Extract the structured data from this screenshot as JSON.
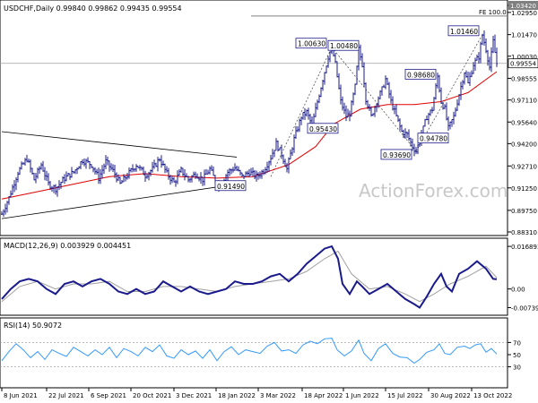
{
  "chart_data": [
    {
      "type": "ohlc",
      "header": "USDCHF,Daily  0.99840 0.99862 0.99435 0.99554",
      "watermark": "ActionForex.com",
      "ylim": [
        0.8831,
        1.0342
      ],
      "yticks": [
        "1.03420",
        "1.02950",
        "1.01470",
        "1.00030",
        "0.98555",
        "0.97110",
        "0.95640",
        "0.94200",
        "0.92710",
        "0.91250",
        "0.89750",
        "0.88310"
      ],
      "last_price_label": "0.99554",
      "fe_label": "FE 100.0",
      "fe_level": 1.0271,
      "annotations": [
        {
          "text": "1.00630",
          "value": 1.0063
        },
        {
          "text": "1.00480",
          "value": 1.0048
        },
        {
          "text": "1.01460",
          "value": 1.0146
        },
        {
          "text": "0.98680",
          "value": 0.9868
        },
        {
          "text": "0.95430",
          "value": 0.9543
        },
        {
          "text": "0.94780",
          "value": 0.9478
        },
        {
          "text": "0.93690",
          "value": 0.9369
        },
        {
          "text": "0.91490",
          "value": 0.9149
        }
      ],
      "xticks": [
        "8 Jun 2021",
        "22 Jul 2021",
        "6 Sep 2021",
        "20 Oct 2021",
        "3 Dec 2021",
        "18 Jan 2022",
        "3 Mar 2022",
        "18 Apr 2022",
        "1 Jun 2022",
        "15 Jul 2022",
        "30 Aug 2022",
        "13 Oct 2022"
      ],
      "close_path": [
        [
          0,
          0.895
        ],
        [
          8,
          0.906
        ],
        [
          18,
          0.923
        ],
        [
          28,
          0.932
        ],
        [
          36,
          0.918
        ],
        [
          44,
          0.928
        ],
        [
          52,
          0.915
        ],
        [
          60,
          0.912
        ],
        [
          70,
          0.919
        ],
        [
          80,
          0.923
        ],
        [
          90,
          0.931
        ],
        [
          100,
          0.928
        ],
        [
          108,
          0.919
        ],
        [
          116,
          0.93
        ],
        [
          125,
          0.923
        ],
        [
          132,
          0.915
        ],
        [
          140,
          0.921
        ],
        [
          150,
          0.928
        ],
        [
          160,
          0.921
        ],
        [
          168,
          0.925
        ],
        [
          176,
          0.932
        ],
        [
          184,
          0.922
        ],
        [
          192,
          0.916
        ],
        [
          200,
          0.924
        ],
        [
          208,
          0.918
        ],
        [
          216,
          0.922
        ],
        [
          224,
          0.918
        ],
        [
          232,
          0.925
        ],
        [
          240,
          0.915
        ],
        [
          246,
          0.917
        ],
        [
          252,
          0.923
        ],
        [
          260,
          0.926
        ],
        [
          268,
          0.92
        ],
        [
          276,
          0.923
        ],
        [
          284,
          0.92
        ],
        [
          292,
          0.924
        ],
        [
          300,
          0.933
        ],
        [
          306,
          0.942
        ],
        [
          312,
          0.935
        ],
        [
          318,
          0.925
        ],
        [
          326,
          0.945
        ],
        [
          334,
          0.96
        ],
        [
          340,
          0.963
        ],
        [
          346,
          0.954
        ],
        [
          352,
          0.97
        ],
        [
          358,
          0.985
        ],
        [
          364,
          1.0
        ],
        [
          368,
          1.0063
        ],
        [
          372,
          0.995
        ],
        [
          378,
          0.97
        ],
        [
          384,
          0.96
        ],
        [
          388,
          0.962
        ],
        [
          394,
          0.98
        ],
        [
          398,
          1.0048
        ],
        [
          402,
          0.995
        ],
        [
          406,
          0.972
        ],
        [
          412,
          0.96
        ],
        [
          418,
          0.97
        ],
        [
          424,
          0.978
        ],
        [
          428,
          0.985
        ],
        [
          434,
          0.97
        ],
        [
          440,
          0.96
        ],
        [
          446,
          0.95
        ],
        [
          452,
          0.948
        ],
        [
          458,
          0.94
        ],
        [
          462,
          0.9369
        ],
        [
          468,
          0.948
        ],
        [
          474,
          0.96
        ],
        [
          480,
          0.965
        ],
        [
          486,
          0.9868
        ],
        [
          490,
          0.97
        ],
        [
          494,
          0.965
        ],
        [
          498,
          0.952
        ],
        [
          504,
          0.96
        ],
        [
          510,
          0.975
        ],
        [
          516,
          0.99
        ],
        [
          520,
          0.982
        ],
        [
          526,
          0.995
        ],
        [
          532,
          1.0
        ],
        [
          536,
          1.0146
        ],
        [
          540,
          1.005
        ],
        [
          544,
          0.993
        ],
        [
          548,
          1.01
        ],
        [
          552,
          0.9955
        ]
      ],
      "ma_path": [
        [
          0,
          0.905
        ],
        [
          40,
          0.91
        ],
        [
          80,
          0.915
        ],
        [
          120,
          0.92
        ],
        [
          160,
          0.922
        ],
        [
          200,
          0.92
        ],
        [
          240,
          0.919
        ],
        [
          280,
          0.92
        ],
        [
          320,
          0.928
        ],
        [
          350,
          0.94
        ],
        [
          370,
          0.955
        ],
        [
          400,
          0.965
        ],
        [
          430,
          0.968
        ],
        [
          460,
          0.968
        ],
        [
          490,
          0.97
        ],
        [
          520,
          0.976
        ],
        [
          552,
          0.99
        ]
      ],
      "channel_lines": [
        {
          "from": [
            0,
            0.95
          ],
          "to": [
            262,
            0.933
          ]
        },
        {
          "from": [
            0,
            0.892
          ],
          "to": [
            262,
            0.915
          ]
        },
        {
          "from": [
            300,
            0.92
          ],
          "to": [
            368,
            1.0063
          ],
          "dash": true
        },
        {
          "from": [
            368,
            1.0063
          ],
          "to": [
            462,
            0.9369
          ],
          "dash": true
        },
        {
          "from": [
            462,
            0.9369
          ],
          "to": [
            536,
            1.0146
          ],
          "dash": true
        }
      ]
    },
    {
      "type": "line",
      "header": "MACD(12,26,9) 0.003929 0.004451",
      "ylim": [
        -0.009,
        0.018
      ],
      "yticks": [
        {
          "label": "0.016893",
          "value": 0.016893
        },
        {
          "label": "0.00",
          "value": 0.0
        },
        {
          "label": "-0.007393",
          "value": -0.007393
        }
      ],
      "zero_marker": "0.00",
      "series": [
        {
          "values": [
            [
              0,
              -0.004
            ],
            [
              10,
              0.0
            ],
            [
              20,
              0.003
            ],
            [
              30,
              0.004
            ],
            [
              40,
              0.003
            ],
            [
              50,
              0.0
            ],
            [
              60,
              -0.002
            ],
            [
              70,
              0.002
            ],
            [
              80,
              0.003
            ],
            [
              90,
              0.001
            ],
            [
              100,
              0.003
            ],
            [
              110,
              0.004
            ],
            [
              120,
              0.002
            ],
            [
              130,
              -0.001
            ],
            [
              140,
              -0.002
            ],
            [
              150,
              0.0
            ],
            [
              160,
              -0.002
            ],
            [
              170,
              -0.001
            ],
            [
              180,
              0.003
            ],
            [
              190,
              0.001
            ],
            [
              200,
              -0.001
            ],
            [
              210,
              0.001
            ],
            [
              220,
              -0.001
            ],
            [
              230,
              -0.002
            ],
            [
              240,
              -0.001
            ],
            [
              250,
              0.0
            ],
            [
              260,
              0.003
            ],
            [
              270,
              0.002
            ],
            [
              280,
              0.002
            ],
            [
              290,
              0.003
            ],
            [
              300,
              0.005
            ],
            [
              310,
              0.006
            ],
            [
              320,
              0.003
            ],
            [
              330,
              0.006
            ],
            [
              340,
              0.01
            ],
            [
              350,
              0.013
            ],
            [
              360,
              0.016
            ],
            [
              368,
              0.0169
            ],
            [
              375,
              0.012
            ],
            [
              380,
              0.002
            ],
            [
              388,
              -0.002
            ],
            [
              396,
              0.003
            ],
            [
              402,
              0.001
            ],
            [
              410,
              -0.002
            ],
            [
              420,
              0.0
            ],
            [
              430,
              0.002
            ],
            [
              440,
              -0.001
            ],
            [
              450,
              -0.004
            ],
            [
              460,
              -0.006
            ],
            [
              466,
              -0.0074
            ],
            [
              474,
              -0.003
            ],
            [
              482,
              0.002
            ],
            [
              490,
              0.006
            ],
            [
              496,
              0.001
            ],
            [
              502,
              -0.001
            ],
            [
              510,
              0.006
            ],
            [
              520,
              0.008
            ],
            [
              530,
              0.011
            ],
            [
              540,
              0.008
            ],
            [
              548,
              0.004
            ],
            [
              552,
              0.0039
            ]
          ]
        },
        {
          "values": [
            [
              0,
              -0.005
            ],
            [
              20,
              0.001
            ],
            [
              40,
              0.003
            ],
            [
              60,
              0.0
            ],
            [
              80,
              0.002
            ],
            [
              100,
              0.002
            ],
            [
              120,
              0.003
            ],
            [
              140,
              -0.001
            ],
            [
              160,
              -0.001
            ],
            [
              180,
              0.001
            ],
            [
              200,
              0.001
            ],
            [
              220,
              0.0
            ],
            [
              240,
              -0.001
            ],
            [
              260,
              0.001
            ],
            [
              280,
              0.002
            ],
            [
              300,
              0.003
            ],
            [
              320,
              0.004
            ],
            [
              340,
              0.007
            ],
            [
              360,
              0.012
            ],
            [
              375,
              0.015
            ],
            [
              390,
              0.006
            ],
            [
              410,
              0.0
            ],
            [
              430,
              0.001
            ],
            [
              450,
              -0.002
            ],
            [
              466,
              -0.005
            ],
            [
              482,
              -0.002
            ],
            [
              500,
              0.002
            ],
            [
              520,
              0.005
            ],
            [
              540,
              0.009
            ],
            [
              552,
              0.0045
            ]
          ]
        }
      ]
    },
    {
      "type": "line",
      "header": "RSI(14) 50.9072",
      "ylim": [
        0,
        100
      ],
      "yticks": [
        {
          "label": "70",
          "value": 70
        },
        {
          "label": "50",
          "value": 50
        },
        {
          "label": "30",
          "value": 30
        }
      ],
      "levels": [
        70,
        30
      ],
      "series": [
        {
          "values": [
            [
              0,
              40
            ],
            [
              8,
              55
            ],
            [
              16,
              68
            ],
            [
              24,
              58
            ],
            [
              32,
              45
            ],
            [
              40,
              55
            ],
            [
              48,
              42
            ],
            [
              56,
              58
            ],
            [
              64,
              52
            ],
            [
              72,
              47
            ],
            [
              80,
              62
            ],
            [
              88,
              55
            ],
            [
              96,
              48
            ],
            [
              104,
              58
            ],
            [
              112,
              50
            ],
            [
              120,
              62
            ],
            [
              128,
              45
            ],
            [
              136,
              60
            ],
            [
              144,
              55
            ],
            [
              152,
              48
            ],
            [
              160,
              62
            ],
            [
              168,
              55
            ],
            [
              176,
              66
            ],
            [
              184,
              48
            ],
            [
              192,
              44
            ],
            [
              200,
              58
            ],
            [
              208,
              50
            ],
            [
              216,
              56
            ],
            [
              224,
              44
            ],
            [
              232,
              58
            ],
            [
              240,
              40
            ],
            [
              248,
              55
            ],
            [
              256,
              63
            ],
            [
              264,
              50
            ],
            [
              272,
              58
            ],
            [
              280,
              55
            ],
            [
              288,
              52
            ],
            [
              296,
              64
            ],
            [
              304,
              70
            ],
            [
              312,
              56
            ],
            [
              320,
              58
            ],
            [
              328,
              52
            ],
            [
              336,
              66
            ],
            [
              344,
              72
            ],
            [
              352,
              68
            ],
            [
              360,
              76
            ],
            [
              368,
              77
            ],
            [
              374,
              58
            ],
            [
              382,
              48
            ],
            [
              390,
              56
            ],
            [
              398,
              74
            ],
            [
              404,
              52
            ],
            [
              412,
              40
            ],
            [
              420,
              60
            ],
            [
              428,
              68
            ],
            [
              436,
              52
            ],
            [
              444,
              46
            ],
            [
              452,
              45
            ],
            [
              460,
              36
            ],
            [
              466,
              42
            ],
            [
              474,
              54
            ],
            [
              482,
              58
            ],
            [
              488,
              68
            ],
            [
              494,
              52
            ],
            [
              500,
              50
            ],
            [
              508,
              62
            ],
            [
              516,
              64
            ],
            [
              522,
              60
            ],
            [
              528,
              66
            ],
            [
              534,
              68
            ],
            [
              540,
              54
            ],
            [
              546,
              60
            ],
            [
              552,
              51
            ]
          ]
        }
      ]
    }
  ]
}
